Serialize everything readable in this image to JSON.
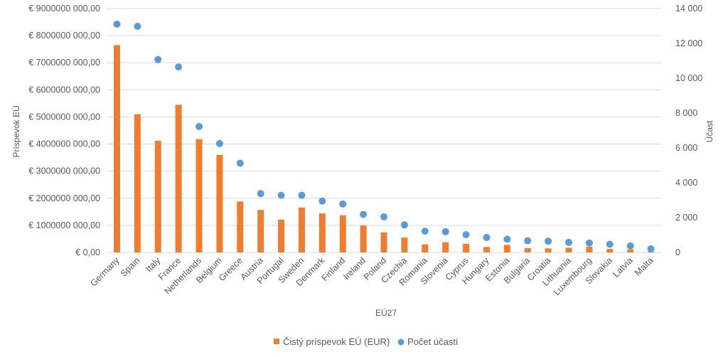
{
  "chart_data": {
    "type": "bar",
    "categories": [
      "Germany",
      "Spain",
      "Italy",
      "France",
      "Netherlands",
      "Belgium",
      "Greece",
      "Austria",
      "Portugal",
      "Sweden",
      "Denmark",
      "Finland",
      "Ireland",
      "Poland",
      "Czechia",
      "Romania",
      "Slovenia",
      "Cyprus",
      "Hungary",
      "Estonia",
      "Bulgaria",
      "Croatia",
      "Lithuania",
      "Luxembourg",
      "Slovakia",
      "Latvia",
      "Malta"
    ],
    "series": [
      {
        "name": "Čistý príspevok EÚ (EUR)",
        "type": "bar",
        "axis": "left",
        "color": "#ED7D31",
        "values": [
          7650000000,
          5100000000,
          4120000000,
          5450000000,
          4180000000,
          3600000000,
          1880000000,
          1570000000,
          1210000000,
          1660000000,
          1440000000,
          1370000000,
          1000000000,
          740000000,
          550000000,
          300000000,
          380000000,
          320000000,
          200000000,
          280000000,
          160000000,
          150000000,
          170000000,
          210000000,
          130000000,
          110000000,
          30000000
        ]
      },
      {
        "name": "Počet účastí",
        "type": "scatter",
        "axis": "right",
        "color": "#5B9BD5",
        "values": [
          13100,
          12980,
          11070,
          10650,
          7230,
          6250,
          5120,
          3380,
          3280,
          3280,
          2950,
          2780,
          2180,
          2040,
          1580,
          1220,
          1190,
          1020,
          860,
          760,
          670,
          650,
          580,
          540,
          470,
          380,
          210
        ]
      }
    ],
    "xlabel": "EÚ27",
    "ylabel": "Príspevok EÚ",
    "y2label": "Účast",
    "ylim": [
      0,
      9000000000
    ],
    "y2lim": [
      0,
      14000
    ],
    "yticks": [
      "€  0,00",
      "€ 1000000 000,00",
      "€ 2000000 000,00",
      "€ 3000000 000,00",
      "€ 4000000 000,00",
      "€ 5000000 000,00",
      "€ 6000000 000,00",
      "€ 7000000 000,00",
      "€ 8000000 000,00",
      "€ 9000000 000,00"
    ],
    "y2ticks": [
      "0",
      "2 000",
      "4 000",
      "6 000",
      "8 000",
      "10 000",
      "12 000",
      "14 000"
    ],
    "grid": true,
    "legend_position": "bottom",
    "colors": {
      "grid": "#D9D9D9",
      "text": "#595959"
    }
  }
}
